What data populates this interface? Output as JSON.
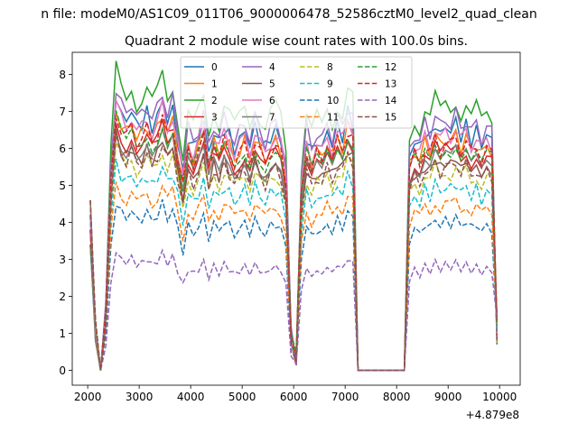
{
  "suptitle": "n file: modeM0/AS1C09_011T06_9000006478_52586cztM0_level2_quad_clean",
  "chart_data": {
    "type": "line",
    "title": "Quadrant 2 module wise count rates with 100.0s bins.",
    "xlabel": "",
    "ylabel": "",
    "x_offset_label": "+4.879e8",
    "xlim": [
      1700,
      10400
    ],
    "ylim": [
      -0.4,
      8.6
    ],
    "xticks": [
      2000,
      3000,
      4000,
      5000,
      6000,
      7000,
      8000,
      9000,
      10000
    ],
    "yticks": [
      0,
      1,
      2,
      3,
      4,
      5,
      6,
      7,
      8
    ],
    "grid": false,
    "legend_position": "upper center (4 columns)",
    "segment_times": [
      2050,
      2150,
      2250,
      2350,
      2450,
      2550,
      2650,
      2750,
      2850,
      2950,
      3050,
      3150,
      3250,
      3350,
      3450,
      3550,
      3650,
      3750,
      3850,
      3950,
      4050,
      4150,
      4250,
      4350,
      4450,
      4550,
      4650,
      4750,
      4850,
      4950,
      5050,
      5150,
      5250,
      5350,
      5450,
      5550,
      5650,
      5750,
      5850,
      5950,
      6050,
      6150,
      6250,
      6350,
      6450,
      6550,
      6650,
      6750,
      6850,
      6950,
      7050,
      7150,
      7250,
      7350,
      7450,
      7550,
      7650,
      7750,
      7850,
      7950,
      8050,
      8150,
      8250,
      8350,
      8450,
      8550,
      8650,
      8750,
      8850,
      8950,
      9050,
      9150,
      9250,
      9350,
      9450,
      9550,
      9650,
      9750,
      9850,
      9950
    ],
    "base_profile": [
      4.0,
      1.0,
      0.0,
      1.3,
      4.5,
      6.2,
      5.8,
      5.6,
      5.9,
      5.5,
      5.6,
      5.8,
      5.5,
      5.7,
      6.1,
      5.6,
      5.9,
      5.2,
      4.4,
      5.3,
      5.0,
      5.3,
      5.6,
      4.9,
      5.4,
      5.1,
      5.5,
      5.3,
      5.0,
      5.2,
      5.4,
      5.1,
      5.5,
      5.2,
      5.0,
      5.3,
      5.4,
      5.2,
      4.5,
      0.8,
      0.3,
      4.2,
      5.3,
      4.9,
      5.2,
      5.0,
      5.4,
      5.1,
      5.5,
      5.3,
      5.8,
      5.6,
      0.0,
      0.0,
      0.0,
      0.0,
      0.0,
      0.0,
      0.0,
      0.0,
      0.0,
      0.0,
      4.8,
      5.2,
      5.0,
      5.4,
      5.2,
      5.6,
      5.3,
      5.5,
      5.4,
      5.6,
      5.3,
      5.5,
      5.2,
      5.4,
      5.1,
      5.3,
      5.2,
      1.2
    ],
    "series": [
      {
        "name": "0",
        "color": "#1f77b4",
        "dash": "solid",
        "level": 6.35
      },
      {
        "name": "1",
        "color": "#ff7f0e",
        "dash": "solid",
        "level": 6.05
      },
      {
        "name": "2",
        "color": "#2ca02c",
        "dash": "solid",
        "level": 6.95
      },
      {
        "name": "3",
        "color": "#d62728",
        "dash": "solid",
        "level": 5.75
      },
      {
        "name": "4",
        "color": "#9467bd",
        "dash": "solid",
        "level": 6.55
      },
      {
        "name": "5",
        "color": "#8c564b",
        "dash": "solid",
        "level": 5.45
      },
      {
        "name": "6",
        "color": "#e377c2",
        "dash": "solid",
        "level": 6.2
      },
      {
        "name": "7",
        "color": "#7f7f7f",
        "dash": "solid",
        "level": 5.6
      },
      {
        "name": "8",
        "color": "#bcbd22",
        "dash": "dashed",
        "level": 5.2
      },
      {
        "name": "9",
        "color": "#17becf",
        "dash": "dashed",
        "level": 4.8
      },
      {
        "name": "10",
        "color": "#1f77b4",
        "dash": "dashed",
        "level": 3.9
      },
      {
        "name": "11",
        "color": "#ff7f0e",
        "dash": "dashed",
        "level": 4.35
      },
      {
        "name": "12",
        "color": "#2ca02c",
        "dash": "dashed",
        "level": 5.85
      },
      {
        "name": "13",
        "color": "#d62728",
        "dash": "dashed",
        "level": 5.95
      },
      {
        "name": "14",
        "color": "#9467bd",
        "dash": "dashed",
        "level": 2.75
      },
      {
        "name": "15",
        "color": "#8c564b",
        "dash": "dashed",
        "level": 5.35
      }
    ]
  }
}
